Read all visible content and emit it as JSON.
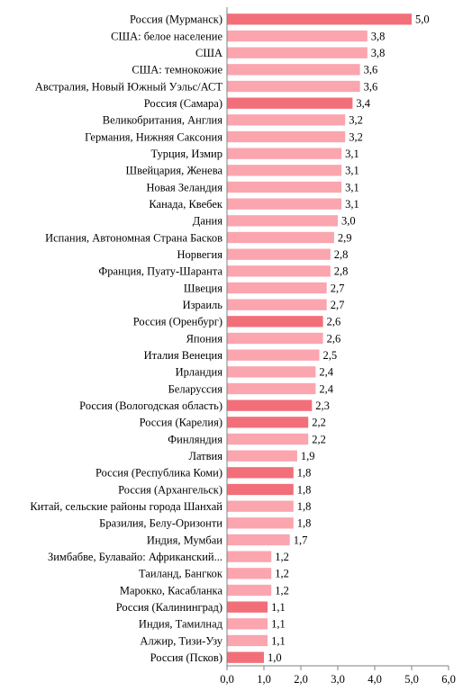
{
  "chart_data": {
    "type": "bar",
    "orientation": "horizontal",
    "categories": [
      "Россия (Мурманск)",
      "США: белое население",
      "США",
      "США: темнокожие",
      "Австралия, Новый Южный Уэльс/АСТ",
      "Россия (Самара)",
      "Великобритания, Англия",
      "Германия, Нижняя Саксония",
      "Турция, Измир",
      "Швейцария, Женева",
      "Новая Зеландия",
      "Канада, Квебек",
      "Дания",
      "Испания, Автономная Страна Басков",
      "Норвегия",
      "Франция, Пуату-Шаранта",
      "Швеция",
      "Израиль",
      "Россия (Оренбург)",
      "Япония",
      "Италия Венеция",
      "Ирландия",
      "Беларуссия",
      "Россия (Вологодская область)",
      "Россия (Карелия)",
      "Финляндия",
      "Латвия",
      "Россия (Республика Коми)",
      "Россия (Архангельск)",
      "Китай, сельские районы города Шанхай",
      "Бразилия, Белу-Оризонти",
      "Индия, Мумбаи",
      "Зимбабве, Булавайо: Африканский...",
      "Таиланд, Бангкок",
      "Марокко, Касабланка",
      "Россия (Калининград)",
      "Индия, Тамилнад",
      "Алжир, Тизи-Узу",
      "Россия (Псков)"
    ],
    "values": [
      5.0,
      3.8,
      3.8,
      3.6,
      3.6,
      3.4,
      3.2,
      3.2,
      3.1,
      3.1,
      3.1,
      3.1,
      3.0,
      2.9,
      2.8,
      2.8,
      2.7,
      2.7,
      2.6,
      2.6,
      2.5,
      2.4,
      2.4,
      2.3,
      2.2,
      2.2,
      1.9,
      1.8,
      1.8,
      1.8,
      1.8,
      1.7,
      1.2,
      1.2,
      1.2,
      1.1,
      1.1,
      1.1,
      1.0
    ],
    "value_labels": [
      "5,0",
      "3,8",
      "3,8",
      "3,6",
      "3,6",
      "3,4",
      "3,2",
      "3,2",
      "3,1",
      "3,1",
      "3,1",
      "3,1",
      "3,0",
      "2,9",
      "2,8",
      "2,8",
      "2,7",
      "2,7",
      "2,6",
      "2,6",
      "2,5",
      "2,4",
      "2,4",
      "2,3",
      "2,2",
      "2,2",
      "1,9",
      "1,8",
      "1,8",
      "1,8",
      "1,8",
      "1,7",
      "1,2",
      "1,2",
      "1,2",
      "1,1",
      "1,1",
      "1,1",
      "1,0"
    ],
    "highlighted": [
      true,
      false,
      false,
      false,
      false,
      true,
      false,
      false,
      false,
      false,
      false,
      false,
      false,
      false,
      false,
      false,
      false,
      false,
      true,
      false,
      false,
      false,
      false,
      true,
      true,
      false,
      false,
      true,
      true,
      false,
      false,
      false,
      false,
      false,
      false,
      true,
      false,
      false,
      true
    ],
    "xlim": [
      0,
      6
    ],
    "xticks": [
      0,
      1,
      2,
      3,
      4,
      5,
      6
    ],
    "xtick_labels": [
      "0,0",
      "1,0",
      "2,0",
      "3,0",
      "4,0",
      "5,0",
      "6,0"
    ],
    "title": "",
    "xlabel": "",
    "ylabel": "",
    "grid": false,
    "colors": {
      "highlight": "#f26f7a",
      "normal": "#fba5ae",
      "axis": "#808080"
    }
  }
}
